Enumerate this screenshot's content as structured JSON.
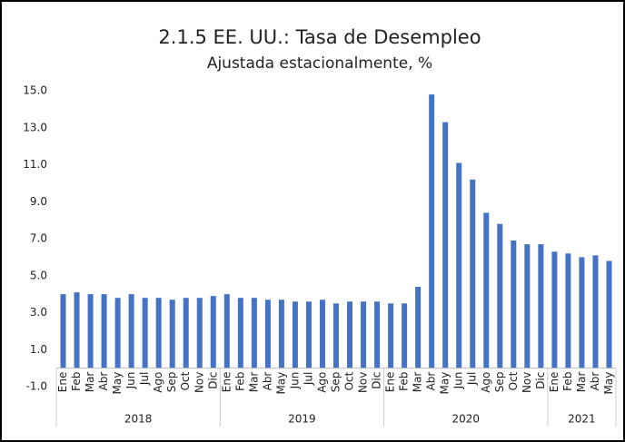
{
  "chart_data": {
    "type": "bar",
    "title": "2.1.5 EE. UU.: Tasa de Desempleo",
    "subtitle": "Ajustada estacionalmente, %",
    "groups": [
      {
        "name": "2018",
        "categories": [
          "Ene",
          "Feb",
          "Mar",
          "Abr",
          "May",
          "Jun",
          "Jul",
          "Ago",
          "Sep",
          "Oct",
          "Nov",
          "Dic"
        ]
      },
      {
        "name": "2019",
        "categories": [
          "Ene",
          "Feb",
          "Mar",
          "Abr",
          "May",
          "Jun",
          "Jul",
          "Ago",
          "Sep",
          "Oct",
          "Nov",
          "Dic"
        ]
      },
      {
        "name": "2020",
        "categories": [
          "Ene",
          "Feb",
          "Mar",
          "Abr",
          "May",
          "Jun",
          "Jul",
          "Ago",
          "Sep",
          "Oct",
          "Nov",
          "Dic"
        ]
      },
      {
        "name": "2021",
        "categories": [
          "Ene",
          "Feb",
          "Mar",
          "Abr",
          "May"
        ]
      }
    ],
    "values": [
      4.0,
      4.1,
      4.0,
      4.0,
      3.8,
      4.0,
      3.8,
      3.8,
      3.7,
      3.8,
      3.8,
      3.9,
      4.0,
      3.8,
      3.8,
      3.7,
      3.7,
      3.6,
      3.6,
      3.7,
      3.5,
      3.6,
      3.6,
      3.6,
      3.5,
      3.5,
      4.4,
      14.8,
      13.3,
      11.1,
      10.2,
      8.4,
      7.8,
      6.9,
      6.7,
      6.7,
      6.3,
      6.2,
      6.0,
      6.1,
      5.8
    ],
    "color": "#4472c4",
    "ylim": [
      -1,
      15
    ],
    "yticks": [
      {
        "value": -1,
        "label": "-1.0"
      },
      {
        "value": 1,
        "label": "1.0"
      },
      {
        "value": 3,
        "label": "3.0"
      },
      {
        "value": 5,
        "label": "5.0"
      },
      {
        "value": 7,
        "label": "7.0"
      },
      {
        "value": 9,
        "label": "9.0"
      },
      {
        "value": 11,
        "label": "11.0"
      },
      {
        "value": 13,
        "label": "13.0"
      },
      {
        "value": 15,
        "label": "15.0"
      }
    ],
    "grid": false
  }
}
